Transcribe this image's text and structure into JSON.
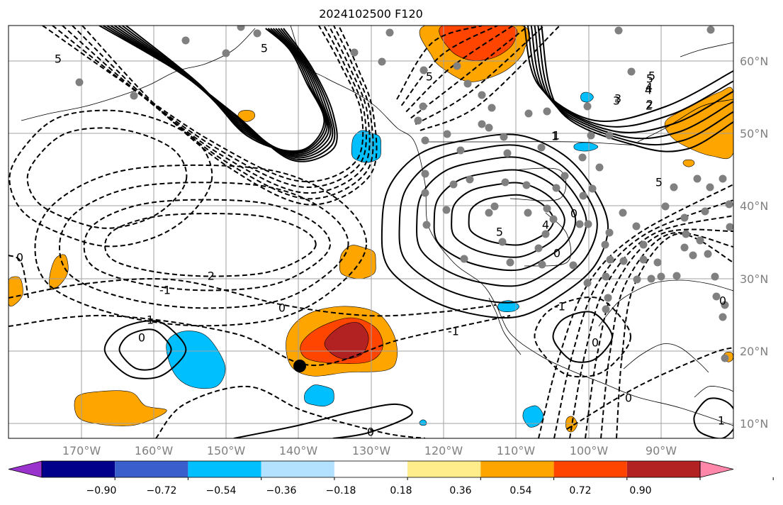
{
  "title": "2024102500 F120",
  "map": {
    "projection": "lat-lon",
    "lon_range": [
      -180,
      -80
    ],
    "lat_range": [
      8,
      65
    ],
    "gridlines": true,
    "coastlines": true,
    "station_dots_color": "#808080",
    "storm_marker_color": "#000000",
    "contour_color": "#000000",
    "negative_contours": "dashed",
    "positive_contours": "solid"
  },
  "lat_labels": [
    "60°N",
    "50°N",
    "40°N",
    "30°N",
    "20°N",
    "10°N"
  ],
  "lon_labels": [
    "170°W",
    "160°W",
    "150°W",
    "140°W",
    "130°W",
    "120°W",
    "110°W",
    "100°W",
    "90°W"
  ],
  "contour_labels": [
    "5",
    "5",
    "5",
    "5",
    "4",
    "3",
    "2",
    "1",
    "0",
    "-1",
    "-2",
    "4",
    "5",
    "0",
    "-1",
    "0",
    "1",
    "0",
    "-1",
    "0",
    "0",
    "1",
    "0",
    "5",
    "4",
    "3",
    "2",
    "1",
    "5",
    "0",
    "0"
  ],
  "colorbar": {
    "orientation": "horizontal",
    "extend": "both",
    "colors": [
      "#9a32cd",
      "#00008b",
      "#3a5fcd",
      "#00bfff",
      "#b2e2ff",
      "#ffffff",
      "#ffec8b",
      "#ffa500",
      "#ff4500",
      "#b22222",
      "#ff88aa"
    ],
    "tick_labels": [
      "−0.90",
      "−0.72",
      "−0.54",
      "−0.36",
      "−0.18",
      "0.18",
      "0.36",
      "0.54",
      "0.72",
      "0.90"
    ]
  }
}
